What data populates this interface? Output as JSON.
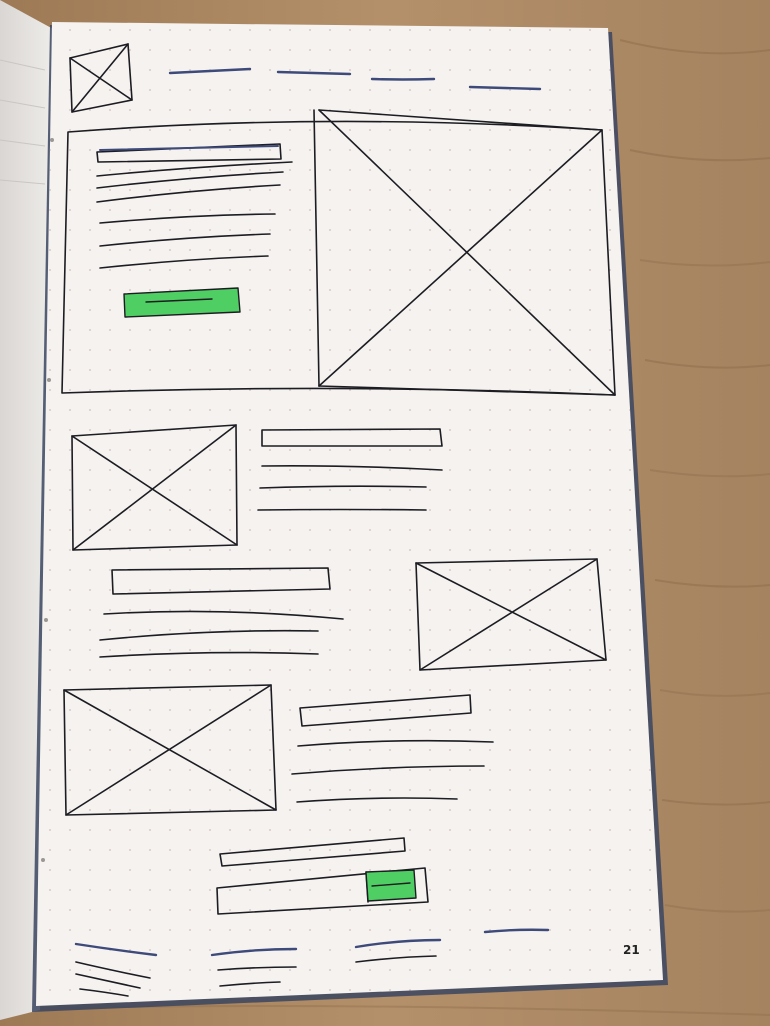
{
  "photo": {
    "colors": {
      "wood": "#b08a62",
      "wood_dark": "#8a6a48",
      "paper": "#f5f2ef",
      "dots": "#c9b9b9",
      "ink": "#1c1c22",
      "ink_blue": "#3d4a7a",
      "highlight": "#4fcf63"
    }
  },
  "notebook": {
    "page_number": "21"
  }
}
